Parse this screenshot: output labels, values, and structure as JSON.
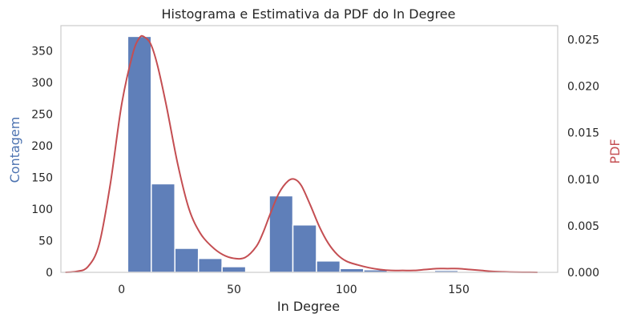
{
  "chart_data": {
    "type": "bar",
    "title": "Histograma e Estimativa da PDF do In Degree",
    "xlabel": "In Degree",
    "ylabel_left": "Contagem",
    "ylabel_right": "PDF",
    "xlim": [
      -27,
      194
    ],
    "ylim_left": [
      0,
      390
    ],
    "ylim_right": [
      0,
      0.0265
    ],
    "x_ticks": [
      0,
      50,
      100,
      150
    ],
    "y_ticks_left": [
      0,
      50,
      100,
      150,
      200,
      250,
      300,
      350
    ],
    "y_ticks_right": [
      "0.000",
      "0.005",
      "0.010",
      "0.015",
      "0.020",
      "0.025"
    ],
    "grid": false,
    "colors": {
      "bars": "#5f7fb9",
      "bar_edge": "#ffffff",
      "pdf_line": "#c44e52",
      "left_axis_label": "#4c72b0",
      "right_axis_label": "#c44e52",
      "frame": "#cccccc"
    },
    "bins": [
      {
        "x0": 2.7,
        "x1": 13.2,
        "count": 373
      },
      {
        "x0": 13.2,
        "x1": 23.7,
        "count": 140
      },
      {
        "x0": 23.7,
        "x1": 34.2,
        "count": 38
      },
      {
        "x0": 34.2,
        "x1": 44.7,
        "count": 22
      },
      {
        "x0": 44.7,
        "x1": 55.2,
        "count": 9
      },
      {
        "x0": 55.2,
        "x1": 65.7,
        "count": 0
      },
      {
        "x0": 65.7,
        "x1": 76.2,
        "count": 121
      },
      {
        "x0": 76.2,
        "x1": 86.7,
        "count": 75
      },
      {
        "x0": 86.7,
        "x1": 97.2,
        "count": 18
      },
      {
        "x0": 97.2,
        "x1": 107.7,
        "count": 6
      },
      {
        "x0": 107.7,
        "x1": 118.2,
        "count": 4
      },
      {
        "x0": 118.2,
        "x1": 128.7,
        "count": 0
      },
      {
        "x0": 128.7,
        "x1": 139.2,
        "count": 0
      },
      {
        "x0": 139.2,
        "x1": 149.7,
        "count": 3
      },
      {
        "x0": 149.7,
        "x1": 160.2,
        "count": 0
      }
    ],
    "pdf_curve": {
      "x": [
        -25,
        -20,
        -15,
        -10,
        -5,
        0,
        5,
        8,
        10,
        13,
        16,
        20,
        25,
        30,
        35,
        40,
        45,
        50,
        55,
        60,
        63,
        66,
        70,
        74,
        77,
        80,
        84,
        88,
        92,
        96,
        100,
        105,
        110,
        115,
        120,
        125,
        130,
        135,
        140,
        145,
        150,
        155,
        160,
        165,
        170,
        175,
        180,
        185
      ],
      "y": [
        0,
        0.0001,
        0.0006,
        0.003,
        0.0095,
        0.018,
        0.0235,
        0.0252,
        0.0253,
        0.0245,
        0.0222,
        0.0178,
        0.0116,
        0.0068,
        0.0042,
        0.0028,
        0.0019,
        0.0015,
        0.0016,
        0.0028,
        0.0043,
        0.0062,
        0.0085,
        0.0098,
        0.01,
        0.0093,
        0.0072,
        0.0049,
        0.0031,
        0.0019,
        0.0012,
        0.0008,
        0.0005,
        0.0003,
        0.0002,
        0.0002,
        0.0002,
        0.0003,
        0.0004,
        0.0004,
        0.0004,
        0.0003,
        0.0002,
        0.0001,
        5e-05,
        2e-05,
        1e-05,
        0
      ]
    }
  }
}
